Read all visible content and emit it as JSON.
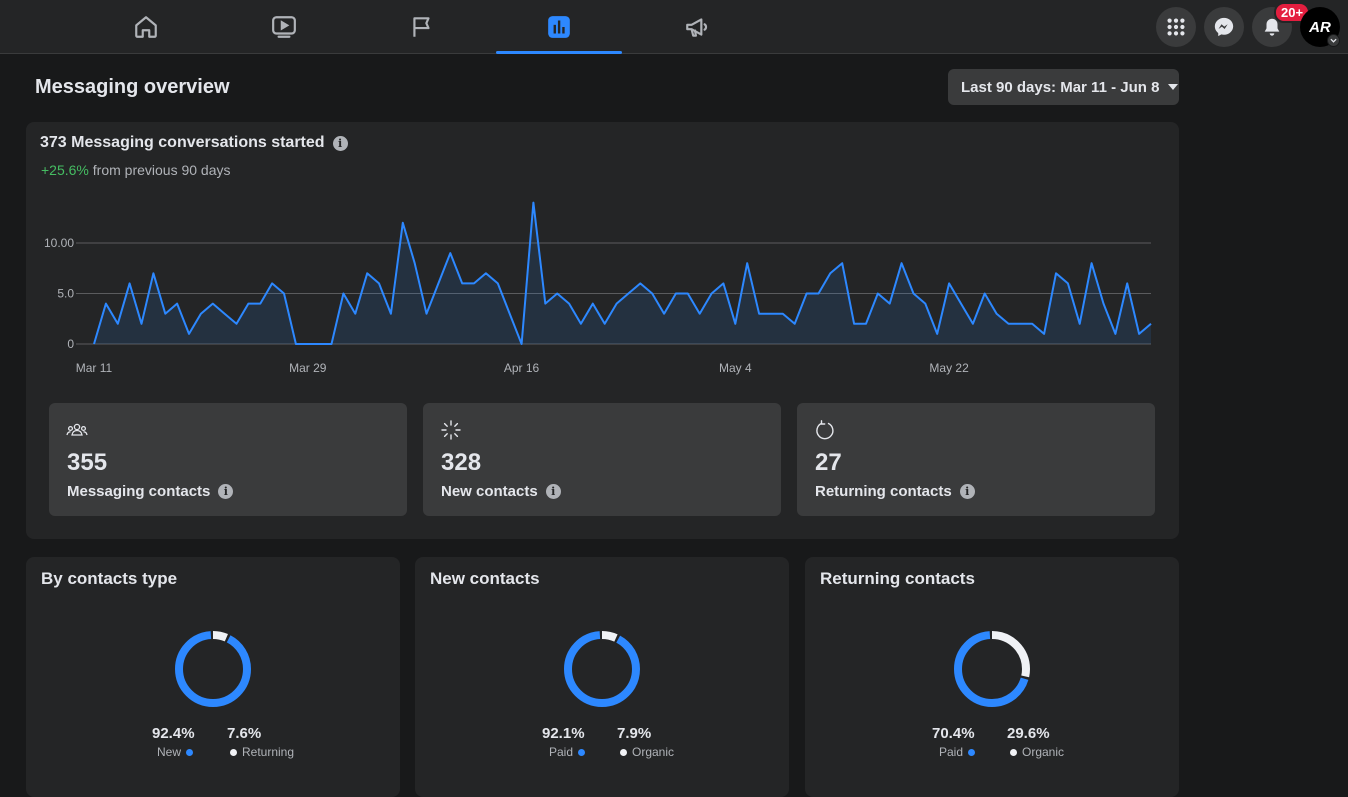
{
  "nav": {
    "tabs": [
      {
        "name": "home",
        "icon": "home-icon"
      },
      {
        "name": "watch",
        "icon": "video-icon"
      },
      {
        "name": "pages",
        "icon": "flag-icon"
      },
      {
        "name": "insights",
        "icon": "bar-chart-icon",
        "active": true
      },
      {
        "name": "ads",
        "icon": "megaphone-icon"
      }
    ],
    "notifications_badge": "20+",
    "avatar_text": "AR"
  },
  "page": {
    "title": "Messaging overview",
    "date_range": "Last 90 days: Mar 11 - Jun 8"
  },
  "conversations": {
    "title": "373 Messaging conversations started",
    "change": "+25.6%",
    "change_suffix": "from previous 90 days"
  },
  "chart_data": {
    "type": "area",
    "x_tick_labels": [
      "Mar 11",
      "Mar 29",
      "Apr 16",
      "May 4",
      "May 22"
    ],
    "y_tick_labels": [
      "0",
      "5.0",
      "10.00"
    ],
    "ylim": [
      0,
      14
    ],
    "grid": true,
    "series": [
      {
        "values": [
          0,
          4,
          2,
          6,
          2,
          7,
          3,
          4,
          1,
          3,
          4,
          3,
          2,
          4,
          4,
          6,
          5,
          0,
          0,
          0,
          0,
          5,
          3,
          7,
          6,
          3,
          12,
          8,
          3,
          6,
          9,
          6,
          6,
          7,
          6,
          3,
          0,
          14,
          4,
          5,
          4,
          2,
          4,
          2,
          4,
          5,
          6,
          5,
          3,
          5,
          5,
          3,
          5,
          6,
          2,
          8,
          3,
          3,
          3,
          2,
          5,
          5,
          7,
          8,
          2,
          2,
          5,
          4,
          8,
          5,
          4,
          1,
          6,
          4,
          2,
          5,
          3,
          2,
          2,
          2,
          1,
          7,
          6,
          2,
          8,
          4,
          1,
          6,
          1,
          2
        ]
      }
    ],
    "colors": {
      "line": "#2d88ff",
      "fill": "#2d88ff",
      "grid": "#5b5c5e"
    }
  },
  "stats": [
    {
      "icon": "people-icon",
      "value": "355",
      "label": "Messaging contacts"
    },
    {
      "icon": "sparkle-icon",
      "value": "328",
      "label": "New contacts"
    },
    {
      "icon": "refresh-icon",
      "value": "27",
      "label": "Returning contacts"
    }
  ],
  "donuts": [
    {
      "title": "By contacts type",
      "a_pct": "92.4%",
      "a_label": "New",
      "b_pct": "7.6%",
      "b_label": "Returning",
      "a_value": 92.4
    },
    {
      "title": "New contacts",
      "a_pct": "92.1%",
      "a_label": "Paid",
      "b_pct": "7.9%",
      "b_label": "Organic",
      "a_value": 92.1
    },
    {
      "title": "Returning contacts",
      "a_pct": "70.4%",
      "a_label": "Paid",
      "b_pct": "29.6%",
      "b_label": "Organic",
      "a_value": 70.4
    }
  ],
  "colors": {
    "accent": "#2d88ff",
    "secondary": "#f0f2f5",
    "positive": "#45bd62",
    "badge": "#e41e3f"
  }
}
